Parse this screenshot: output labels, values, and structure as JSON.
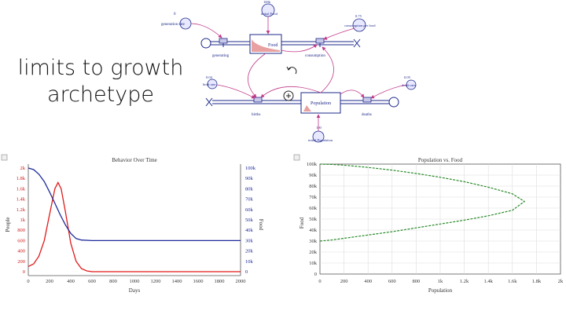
{
  "slide": {
    "title_line1": "limits to growth",
    "title_line2": "archetype"
  },
  "diagram": {
    "food_stock": "Food",
    "population_stock": "Population",
    "generating": "generating",
    "consumption": "consumption",
    "births": "births",
    "deaths": "deaths",
    "generation_rate": "generation rate",
    "generation_rate_value": "0",
    "consumption_per_food": "consumption per food",
    "consumption_per_food_value": "0.75",
    "initial_food": "initial Food",
    "initial_food_value": "100k",
    "birth_rate": "birth rate",
    "birth_rate_value": "0.04",
    "death_rate": "death rate",
    "death_rate_value": "0.05",
    "initial_population": "initial Population",
    "initial_population_value": "100",
    "colors": {
      "link": "#c03a8a",
      "stock": "#1e2a8a",
      "flow": "#1e2a8a",
      "graph_fill": "#e8a0a0"
    }
  },
  "chart_data": [
    {
      "type": "line",
      "title": "Behavior Over Time",
      "xlabel": "Days",
      "ylabel_left": "People",
      "ylabel_right": "Food",
      "x_ticks": [
        "0",
        "200",
        "400",
        "600",
        "800",
        "1000",
        "1200",
        "1400",
        "1600",
        "1800",
        "2000"
      ],
      "y_left_ticks": [
        "0",
        "200",
        "400",
        "600",
        "800",
        "1k",
        "1.2k",
        "1.4k",
        "1.6k",
        "1.8k",
        "2k"
      ],
      "y_right_ticks": [
        "0",
        "10k",
        "20k",
        "30k",
        "40k",
        "50k",
        "60k",
        "70k",
        "80k",
        "90k",
        "100k"
      ],
      "xlim": [
        0,
        2000
      ],
      "ylim_left": [
        0,
        2000
      ],
      "ylim_right": [
        0,
        100000
      ],
      "grid": false,
      "series": [
        {
          "axis": "left",
          "color": "#e01b1b",
          "x": [
            0,
            50,
            100,
            150,
            200,
            250,
            280,
            310,
            350,
            400,
            450,
            500,
            550,
            600,
            800,
            2000
          ],
          "y": [
            100,
            150,
            300,
            600,
            1100,
            1600,
            1720,
            1600,
            1150,
            550,
            200,
            60,
            15,
            0,
            0,
            0
          ]
        },
        {
          "axis": "right",
          "color": "#1e2a9a",
          "x": [
            0,
            50,
            100,
            150,
            200,
            250,
            300,
            350,
            400,
            450,
            500,
            600,
            800,
            2000
          ],
          "y": [
            100000,
            98500,
            94000,
            87000,
            77000,
            66000,
            55000,
            45000,
            37000,
            32000,
            30500,
            30000,
            30000,
            30000
          ]
        }
      ]
    },
    {
      "type": "line",
      "title": "Population vs. Food",
      "xlabel": "Population",
      "ylabel": "Food",
      "x_ticks": [
        "0",
        "200",
        "400",
        "600",
        "800",
        "1k",
        "1.2k",
        "1.4k",
        "1.6k",
        "1.8k",
        "2k"
      ],
      "y_ticks": [
        "0",
        "10k",
        "20k",
        "30k",
        "40k",
        "50k",
        "60k",
        "70k",
        "80k",
        "90k",
        "100k"
      ],
      "xlim": [
        0,
        2000
      ],
      "ylim": [
        0,
        100000
      ],
      "grid": true,
      "series": [
        {
          "color": "#2a8a2a",
          "x": [
            0,
            100,
            200,
            400,
            600,
            800,
            1000,
            1200,
            1400,
            1600,
            1700,
            1600,
            1400,
            1200,
            1000,
            800,
            600,
            400,
            200,
            100,
            0
          ],
          "y": [
            30000,
            31000,
            32500,
            35500,
            38500,
            42000,
            45500,
            49000,
            53000,
            58000,
            66000,
            73000,
            79000,
            84000,
            88000,
            91500,
            94500,
            97000,
            99000,
            99700,
            100000
          ]
        }
      ]
    }
  ]
}
